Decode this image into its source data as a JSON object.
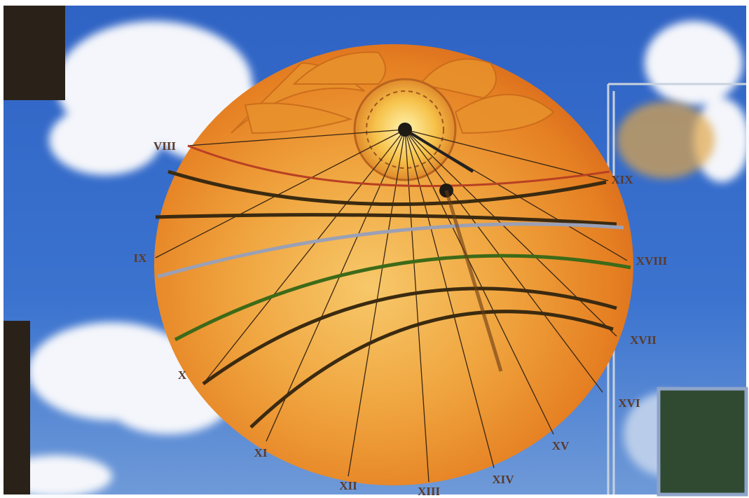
{
  "hour_labels": [
    "VIII",
    "IX",
    "X",
    "XI",
    "XII",
    "XIII",
    "XIV",
    "XV",
    "XVI",
    "XVII",
    "XVIII",
    "XIX"
  ]
}
